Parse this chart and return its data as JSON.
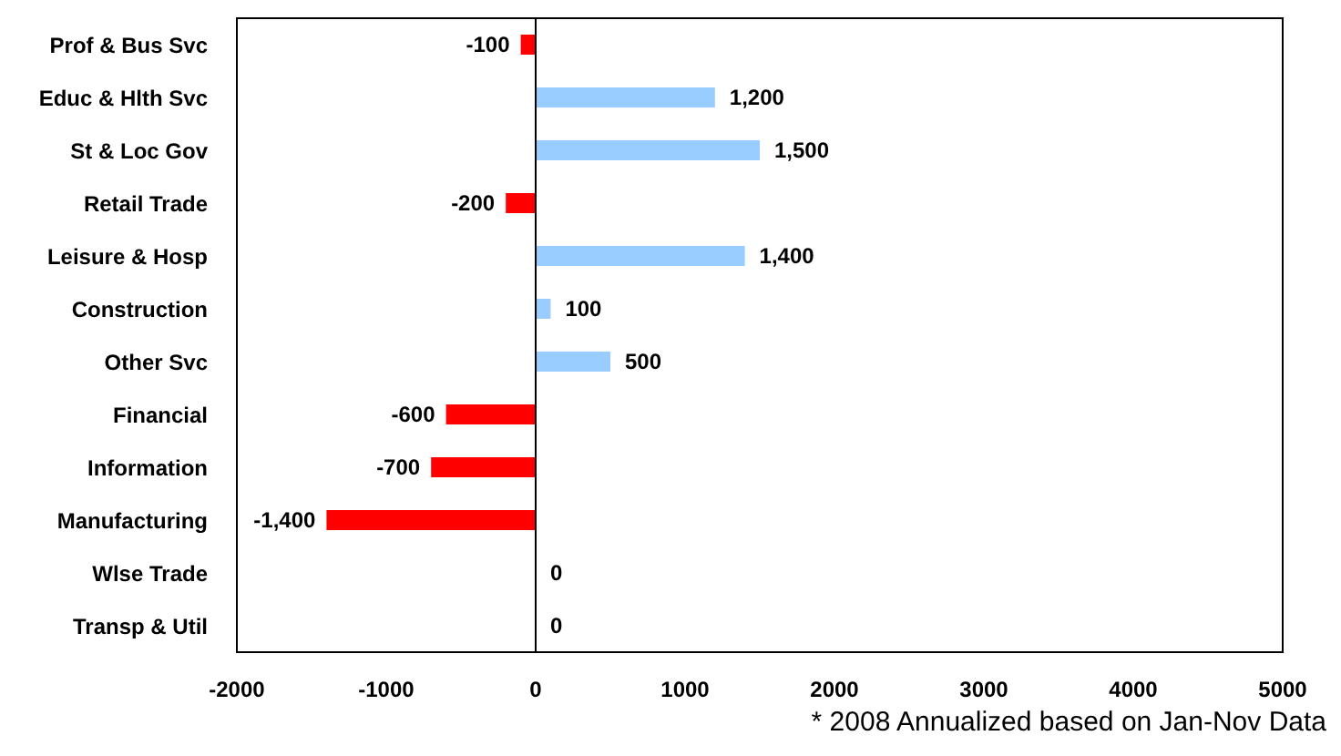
{
  "chart_data": {
    "type": "bar",
    "orientation": "horizontal",
    "categories": [
      "Prof & Bus Svc",
      "Educ & Hlth Svc",
      "St & Loc Gov",
      "Retail Trade",
      "Leisure & Hosp",
      "Construction",
      "Other Svc",
      "Financial",
      "Information",
      "Manufacturing",
      "Wlse Trade",
      "Transp & Util"
    ],
    "values": [
      -100,
      1200,
      1500,
      -200,
      1400,
      100,
      500,
      -600,
      -700,
      -1400,
      0,
      0
    ],
    "colors": [
      "#ff0000",
      "#99ccff",
      "#99ccff",
      "#ff0000",
      "#99ccff",
      "#99ccff",
      "#99ccff",
      "#ff0000",
      "#ff0000",
      "#ff0000",
      "#99ccff",
      "#99ccff"
    ],
    "value_labels": [
      "-100",
      "1,200",
      "1,500",
      "-200",
      "1,400",
      "100",
      "500",
      "-600",
      "-700",
      "-1,400",
      "0",
      "0"
    ],
    "xlim": [
      -2000,
      5000
    ],
    "xticks": [
      -2000,
      -1000,
      0,
      1000,
      2000,
      3000,
      4000,
      5000
    ],
    "annotations": [
      "* 2008 Annualized based on Jan-Nov Data"
    ]
  }
}
